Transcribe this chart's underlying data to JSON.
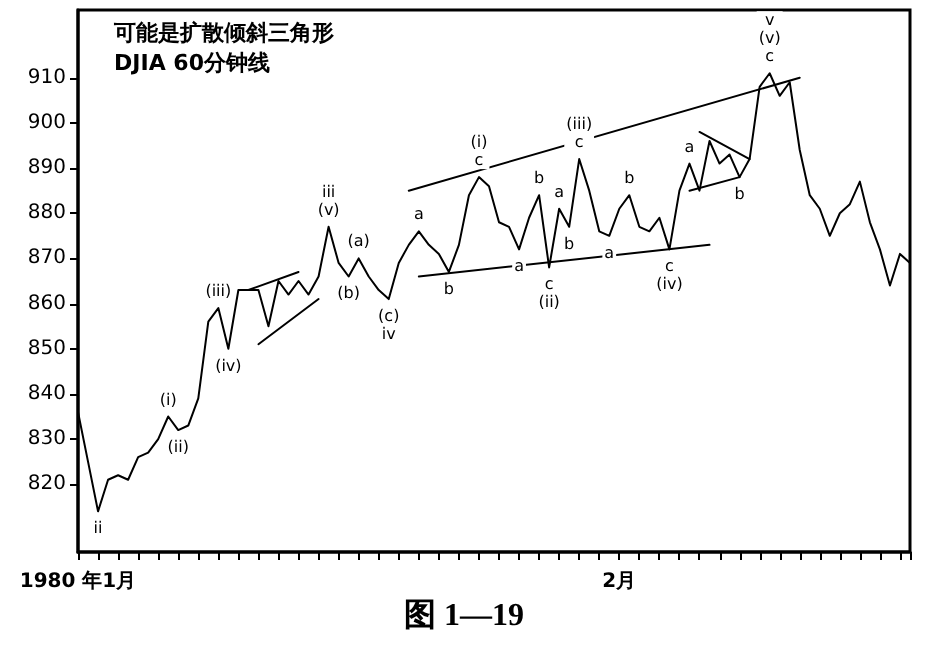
{
  "chart_data": {
    "type": "line",
    "title": "可能是扩散倾斜三角形",
    "subtitle": "DJIA 60分钟线",
    "categories": [
      "1980 年1月",
      null,
      null,
      null,
      null,
      null,
      null,
      null,
      null,
      null,
      null,
      null,
      null,
      null,
      null,
      null,
      null,
      null,
      null,
      null,
      null,
      null,
      null,
      null,
      null,
      null,
      null,
      null,
      null,
      null,
      null,
      null,
      null,
      null,
      null,
      null,
      null,
      null,
      null,
      null,
      null,
      null,
      null,
      null,
      null,
      null,
      null,
      null,
      null,
      null,
      null,
      null,
      null,
      null,
      "2月",
      null,
      null,
      null,
      null,
      null,
      null,
      null,
      null,
      null,
      null,
      null,
      null,
      null,
      null,
      null,
      null,
      null,
      null,
      null,
      null,
      null,
      null,
      null,
      null,
      null,
      null,
      null,
      null,
      null
    ],
    "ylim": [
      805,
      925
    ],
    "yticks": [
      820,
      830,
      840,
      850,
      860,
      870,
      880,
      890,
      900,
      910
    ],
    "series": [
      {
        "color": "#000000",
        "values": [
          836,
          825,
          814,
          821,
          822,
          821,
          826,
          827,
          830,
          835,
          832,
          833,
          839,
          856,
          859,
          850,
          863,
          863,
          863,
          855,
          865,
          862,
          865,
          862,
          866,
          877,
          869,
          866,
          870,
          866,
          863,
          861,
          869,
          873,
          876,
          873,
          871,
          867,
          873,
          884,
          888,
          886,
          878,
          877,
          872,
          879,
          884,
          868,
          881,
          877,
          892,
          885,
          876,
          875,
          881,
          884,
          877,
          876,
          879,
          872,
          885,
          891,
          885,
          896,
          891,
          893,
          888,
          892,
          908,
          911,
          906,
          909,
          894,
          884,
          881,
          875,
          880,
          882,
          887,
          878,
          872,
          864,
          871,
          869
        ],
        "value_labels": [
          null,
          null,
          "ii",
          null,
          null,
          null,
          null,
          null,
          null,
          "(i)",
          "(ii)",
          null,
          null,
          null,
          "(iii)",
          "(iv)",
          null,
          null,
          null,
          null,
          null,
          null,
          null,
          null,
          null,
          "iii\n(v)",
          null,
          "(b)",
          "(a)",
          null,
          null,
          "(c)\niv",
          null,
          null,
          "a",
          null,
          null,
          "b",
          null,
          null,
          "(i)\nc",
          null,
          null,
          null,
          "a",
          null,
          "b",
          "c\n(ii)",
          "a",
          "b",
          "(iii)\nc",
          null,
          null,
          "a",
          null,
          "b",
          null,
          null,
          null,
          "c\n(iv)",
          null,
          "a",
          null,
          null,
          null,
          null,
          "b",
          null,
          null,
          "v\n(v)\nc",
          null,
          null,
          null,
          null,
          null,
          null,
          null,
          null,
          null,
          null,
          null,
          null,
          null,
          null
        ]
      },
      {
        "type": "line",
        "color": "#000000",
        "values": [
          null,
          null,
          null,
          null,
          null,
          null,
          null,
          null,
          null,
          null,
          null,
          null,
          null,
          null,
          null,
          null,
          null,
          null,
          null,
          null,
          null,
          null,
          null,
          null,
          null,
          null,
          null,
          null,
          null,
          null,
          null,
          null,
          null,
          885,
          null,
          null,
          null,
          null,
          null,
          null,
          null,
          null,
          null,
          null,
          null,
          null,
          null,
          null,
          null,
          null,
          null,
          null,
          null,
          null,
          null,
          null,
          null,
          null,
          null,
          null,
          null,
          null,
          null,
          null,
          null,
          null,
          null,
          null,
          null,
          null,
          null,
          null,
          910,
          null,
          null,
          null,
          null,
          null,
          null,
          null,
          null,
          null,
          null,
          null
        ]
      },
      {
        "type": "line",
        "color": "#000000",
        "values": [
          null,
          null,
          null,
          null,
          null,
          null,
          null,
          null,
          null,
          null,
          null,
          null,
          null,
          null,
          null,
          null,
          null,
          null,
          null,
          null,
          null,
          null,
          null,
          null,
          null,
          null,
          null,
          null,
          null,
          null,
          null,
          null,
          null,
          null,
          866,
          null,
          null,
          null,
          null,
          null,
          null,
          null,
          null,
          null,
          null,
          null,
          null,
          null,
          null,
          null,
          null,
          null,
          null,
          null,
          null,
          null,
          null,
          null,
          null,
          null,
          null,
          null,
          null,
          873,
          null,
          null,
          null,
          null,
          null,
          null,
          null,
          null,
          null,
          null,
          null,
          null,
          null,
          null,
          null,
          null,
          null,
          null,
          null,
          null
        ]
      },
      {
        "type": "line",
        "color": "#000000",
        "values": [
          null,
          null,
          null,
          null,
          null,
          null,
          null,
          null,
          null,
          null,
          null,
          null,
          null,
          null,
          null,
          null,
          null,
          863,
          null,
          null,
          null,
          null,
          867,
          null,
          null,
          null,
          null,
          null,
          null,
          null,
          null,
          null,
          null,
          null,
          null,
          null,
          null,
          null,
          null,
          null,
          null,
          null,
          null,
          null,
          null,
          null,
          null,
          null,
          null,
          null,
          null,
          null,
          null,
          null,
          null,
          null,
          null,
          null,
          null,
          null,
          null,
          null,
          null,
          null,
          null,
          null,
          null,
          null,
          null,
          null,
          null,
          null,
          null,
          null,
          null,
          null,
          null,
          null,
          null,
          null,
          null,
          null,
          null,
          null
        ]
      },
      {
        "type": "line",
        "color": "#000000",
        "values": [
          null,
          null,
          null,
          null,
          null,
          null,
          null,
          null,
          null,
          null,
          null,
          null,
          null,
          null,
          null,
          null,
          null,
          null,
          851,
          null,
          null,
          null,
          null,
          null,
          861,
          null,
          null,
          null,
          null,
          null,
          null,
          null,
          null,
          null,
          null,
          null,
          null,
          null,
          null,
          null,
          null,
          null,
          null,
          null,
          null,
          null,
          null,
          null,
          null,
          null,
          null,
          null,
          null,
          null,
          null,
          null,
          null,
          null,
          null,
          null,
          null,
          null,
          null,
          null,
          null,
          null,
          null,
          null,
          null,
          null,
          null,
          null,
          null,
          null,
          null,
          null,
          null,
          null,
          null,
          null,
          null,
          null,
          null,
          null
        ]
      },
      {
        "type": "line",
        "color": "#000000",
        "values": [
          null,
          null,
          null,
          null,
          null,
          null,
          null,
          null,
          null,
          null,
          null,
          null,
          null,
          null,
          null,
          null,
          null,
          null,
          null,
          null,
          null,
          null,
          null,
          null,
          null,
          null,
          null,
          null,
          null,
          null,
          null,
          null,
          null,
          null,
          null,
          null,
          null,
          null,
          null,
          null,
          null,
          null,
          null,
          null,
          null,
          null,
          null,
          null,
          null,
          null,
          null,
          null,
          null,
          null,
          null,
          null,
          null,
          null,
          null,
          null,
          null,
          null,
          898,
          null,
          null,
          null,
          null,
          892,
          null,
          null,
          null,
          null,
          null,
          null,
          null,
          null,
          null,
          null,
          null,
          null,
          null,
          null,
          null,
          null
        ]
      },
      {
        "type": "line",
        "color": "#000000",
        "values": [
          null,
          null,
          null,
          null,
          null,
          null,
          null,
          null,
          null,
          null,
          null,
          null,
          null,
          null,
          null,
          null,
          null,
          null,
          null,
          null,
          null,
          null,
          null,
          null,
          null,
          null,
          null,
          null,
          null,
          null,
          null,
          null,
          null,
          null,
          null,
          null,
          null,
          null,
          null,
          null,
          null,
          null,
          null,
          null,
          null,
          null,
          null,
          null,
          null,
          null,
          null,
          null,
          null,
          null,
          null,
          null,
          null,
          null,
          null,
          null,
          null,
          885,
          null,
          null,
          null,
          null,
          888,
          null,
          null,
          null,
          null,
          null,
          null,
          null,
          null,
          null,
          null,
          null,
          null,
          null,
          null,
          null,
          null,
          null
        ]
      }
    ],
    "marker": "none",
    "grid": false,
    "annotations": [
      "图 1—19"
    ]
  }
}
